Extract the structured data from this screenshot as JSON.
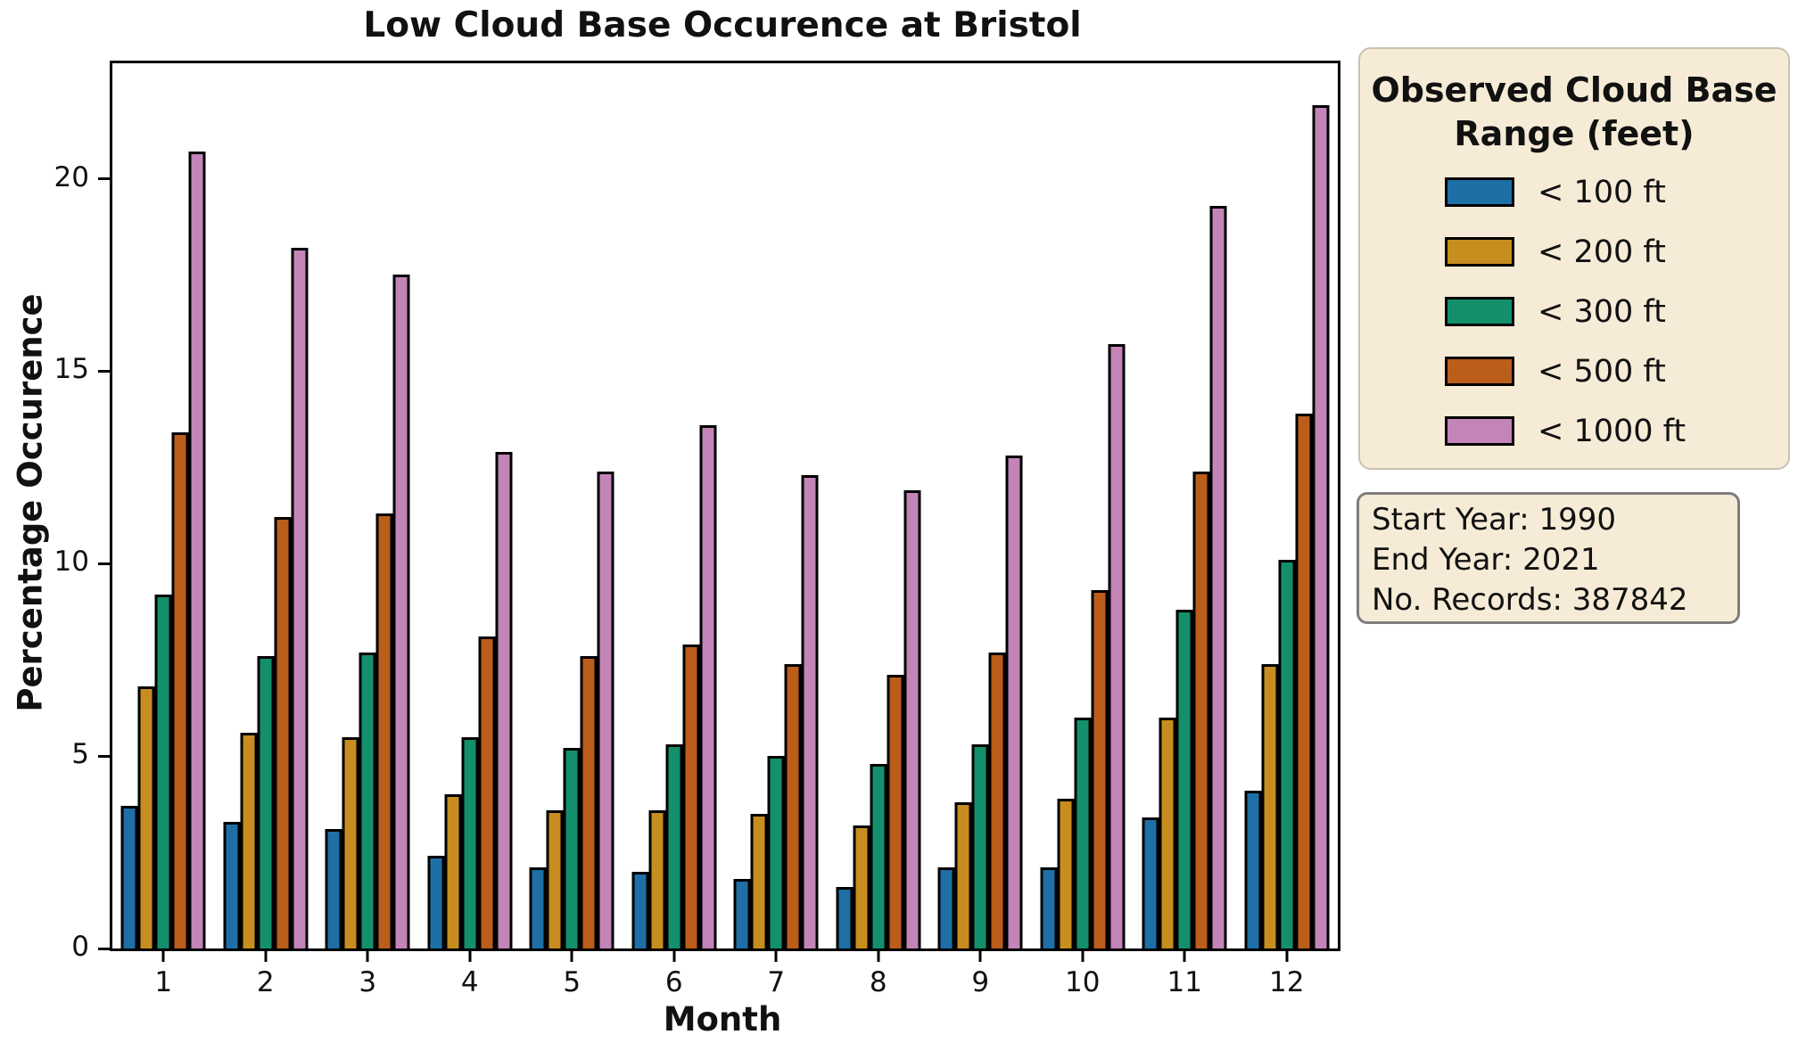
{
  "title": "Low Cloud Base Occurence at Bristol",
  "axes": {
    "xlabel": "Month",
    "ylabel": "Percentage Occurence"
  },
  "legend": {
    "title": "Observed Cloud Base Range (feet)",
    "entries": [
      {
        "label": "< 100 ft",
        "color": "#1E6FA6"
      },
      {
        "label": "< 200 ft",
        "color": "#C78D1F"
      },
      {
        "label": "< 300 ft",
        "color": "#13906B"
      },
      {
        "label": "< 500 ft",
        "color": "#BB5D1B"
      },
      {
        "label": "< 1000 ft",
        "color": "#C384B7"
      }
    ]
  },
  "info_box": {
    "lines": [
      "Start Year: 1990",
      "End Year: 2021",
      "No. Records: 387842"
    ]
  },
  "chart_data": {
    "type": "bar",
    "title": "Low Cloud Base Occurence at Bristol",
    "xlabel": "Month",
    "ylabel": "Percentage Occurence",
    "categories": [
      "1",
      "2",
      "3",
      "4",
      "5",
      "6",
      "7",
      "8",
      "9",
      "10",
      "11",
      "12"
    ],
    "series": [
      {
        "name": "< 100 ft",
        "color": "#1E6FA6",
        "values": [
          3.7,
          3.3,
          3.1,
          2.4,
          2.1,
          2.0,
          1.8,
          1.6,
          2.1,
          2.1,
          3.4,
          4.1
        ]
      },
      {
        "name": "< 200 ft",
        "color": "#C78D1F",
        "values": [
          6.8,
          5.6,
          5.5,
          4.0,
          3.6,
          3.6,
          3.5,
          3.2,
          3.8,
          3.9,
          6.0,
          7.4
        ]
      },
      {
        "name": "< 300 ft",
        "color": "#13906B",
        "values": [
          9.2,
          7.6,
          7.7,
          5.5,
          5.2,
          5.3,
          5.0,
          4.8,
          5.3,
          6.0,
          8.8,
          10.1
        ]
      },
      {
        "name": "< 500 ft",
        "color": "#BB5D1B",
        "values": [
          13.4,
          11.2,
          11.3,
          8.1,
          7.6,
          7.9,
          7.4,
          7.1,
          7.7,
          9.3,
          12.4,
          13.9
        ]
      },
      {
        "name": "< 1000 ft",
        "color": "#C384B7",
        "values": [
          20.7,
          18.2,
          17.5,
          12.9,
          12.4,
          13.6,
          12.3,
          11.9,
          12.8,
          15.7,
          19.3,
          21.9
        ]
      }
    ],
    "yticks": [
      0,
      5,
      10,
      15,
      20
    ],
    "ylim": [
      0,
      23
    ],
    "grid": false,
    "bar_edge_color": "#000000",
    "legend_position": "right-outside",
    "annotations": [
      "Start Year: 1990",
      "End Year: 2021",
      "No. Records: 387842"
    ]
  }
}
